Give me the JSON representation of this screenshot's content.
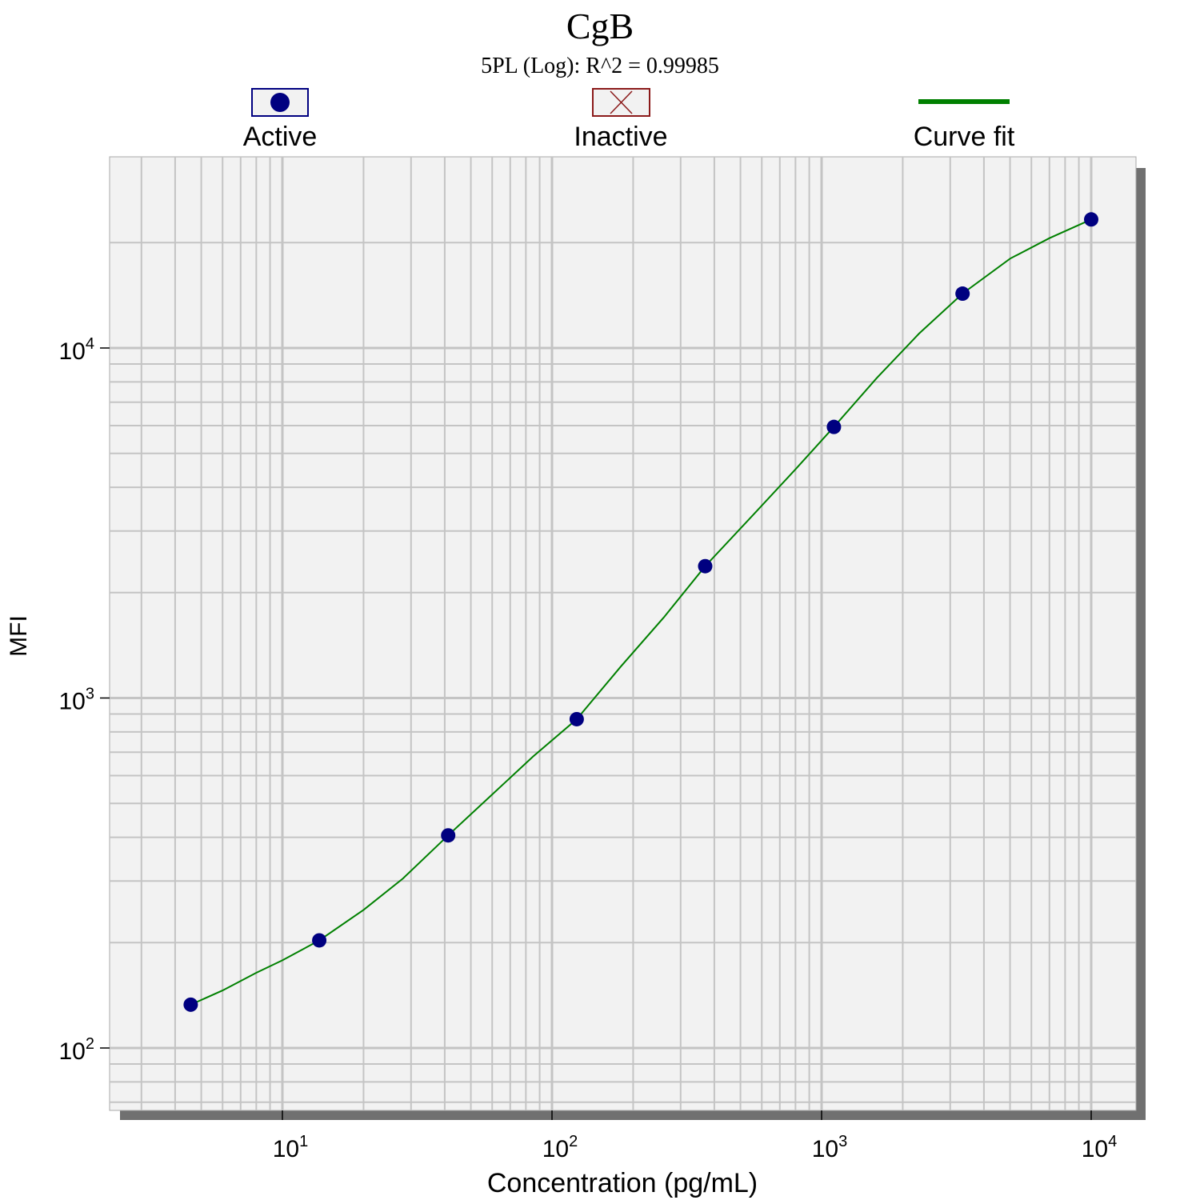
{
  "chart_data": {
    "type": "scatter",
    "title": "CgB",
    "subtitle": "5PL (Log): R^2 = 0.99985",
    "xlabel": "Concentration (pg/mL)",
    "ylabel": "MFI",
    "x_scale": "log",
    "y_scale": "log",
    "xlim": [
      2.5,
      15000
    ],
    "ylim": [
      65,
      28000
    ],
    "grid": true,
    "legend_position": "top",
    "legend": [
      {
        "label": "Active",
        "marker": "filled-circle",
        "color": "#000080"
      },
      {
        "label": "Inactive",
        "marker": "x-box",
        "color": "#8b1a1a"
      },
      {
        "label": "Curve fit",
        "marker": "line",
        "color": "#008000"
      }
    ],
    "x_tick_labels": [
      {
        "base": "10",
        "exp": "1",
        "value": 10
      },
      {
        "base": "10",
        "exp": "2",
        "value": 100
      },
      {
        "base": "10",
        "exp": "3",
        "value": 1000
      },
      {
        "base": "10",
        "exp": "4",
        "value": 10000
      }
    ],
    "y_tick_labels": [
      {
        "base": "10",
        "exp": "2",
        "value": 100
      },
      {
        "base": "10",
        "exp": "3",
        "value": 1000
      },
      {
        "base": "10",
        "exp": "4",
        "value": 10000
      }
    ],
    "series": [
      {
        "name": "Active",
        "kind": "points",
        "color": "#000080",
        "x": [
          4.57,
          13.7,
          41.2,
          123.5,
          370,
          1111,
          3333,
          10000
        ],
        "y": [
          133,
          203,
          405,
          870,
          2380,
          5950,
          14300,
          23300
        ]
      },
      {
        "name": "Curve fit",
        "kind": "line",
        "color": "#008000",
        "x": [
          4.57,
          6,
          8,
          10,
          13.7,
          20,
          28,
          41.2,
          60,
          85,
          123.5,
          180,
          260,
          370,
          550,
          800,
          1111,
          1600,
          2300,
          3333,
          5000,
          7000,
          10000
        ],
        "y": [
          133,
          146,
          164,
          178,
          203,
          248,
          305,
          405,
          530,
          680,
          870,
          1230,
          1700,
          2380,
          3300,
          4500,
          5950,
          8200,
          11000,
          14300,
          18000,
          20600,
          23300
        ]
      }
    ]
  }
}
